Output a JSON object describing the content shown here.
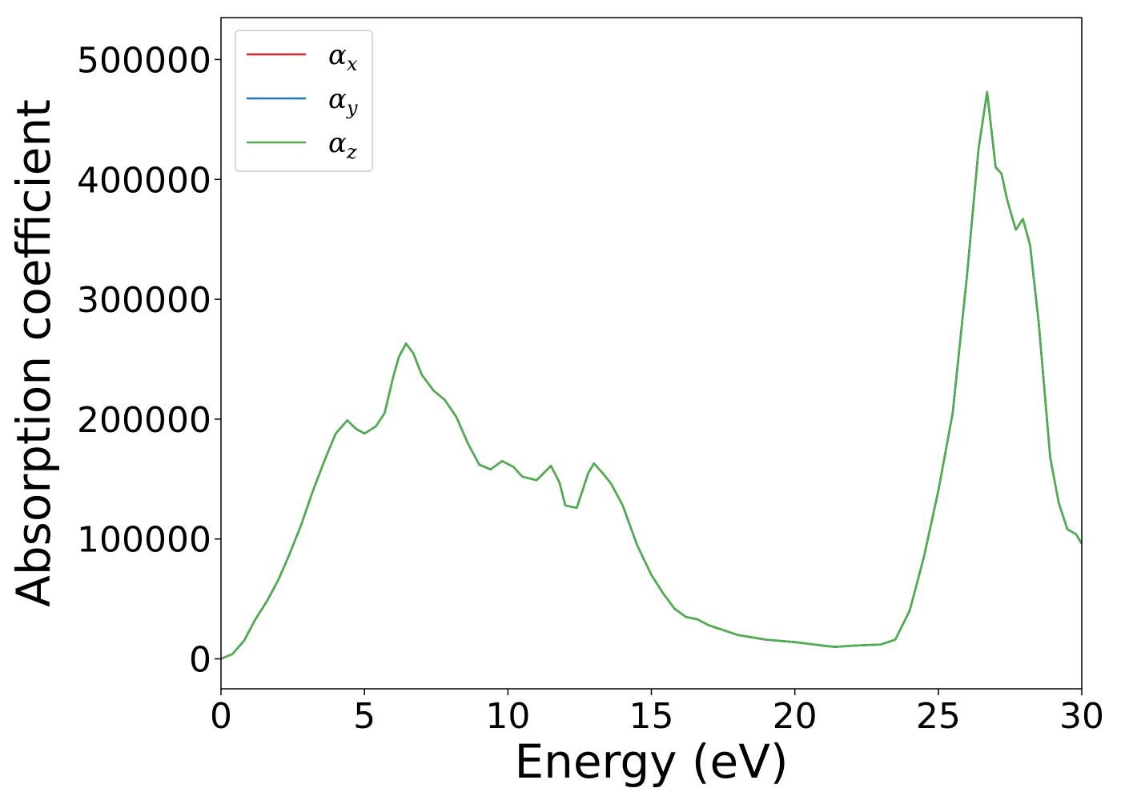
{
  "chart_data": {
    "type": "line",
    "xlabel": "Energy (eV)",
    "ylabel": "Absorption coefficient",
    "xlim": [
      0,
      30
    ],
    "ylim": [
      -25000,
      535000
    ],
    "xticks": [
      "0",
      "5",
      "10",
      "15",
      "20",
      "25",
      "30"
    ],
    "yticks": [
      "0",
      "100000",
      "200000",
      "300000",
      "400000",
      "500000"
    ],
    "grid": false,
    "legend_position": "top-left",
    "x": [
      0,
      0.4,
      0.8,
      1.2,
      1.6,
      2.0,
      2.4,
      2.8,
      3.2,
      3.6,
      4.0,
      4.4,
      4.7,
      5.0,
      5.4,
      5.7,
      6.0,
      6.2,
      6.45,
      6.7,
      7.0,
      7.4,
      7.8,
      8.2,
      8.6,
      9.0,
      9.4,
      9.8,
      10.2,
      10.5,
      11.0,
      11.5,
      11.8,
      12.0,
      12.4,
      12.8,
      13.0,
      13.3,
      13.6,
      14.0,
      14.5,
      15.0,
      15.4,
      15.8,
      16.2,
      16.6,
      17.0,
      17.5,
      18.0,
      19.0,
      20.0,
      21.0,
      21.4,
      22.0,
      23.0,
      23.5,
      24.0,
      24.5,
      25.0,
      25.5,
      26.0,
      26.4,
      26.7,
      27.0,
      27.2,
      27.4,
      27.7,
      27.95,
      28.2,
      28.5,
      28.9,
      29.2,
      29.5,
      29.8,
      30.0
    ],
    "series": [
      {
        "name": "αx",
        "color": "#d62728",
        "values": [
          0,
          4000,
          15000,
          33000,
          48000,
          66000,
          88000,
          112000,
          140000,
          165000,
          188000,
          199000,
          192000,
          188000,
          194000,
          205000,
          235000,
          252000,
          263000,
          255000,
          237000,
          224000,
          216000,
          202000,
          180000,
          162000,
          158000,
          165000,
          160000,
          152000,
          149000,
          161000,
          147000,
          128000,
          126000,
          155000,
          163000,
          155000,
          146000,
          128000,
          95000,
          70000,
          55000,
          42000,
          35000,
          33000,
          28000,
          24000,
          20000,
          16000,
          14000,
          11000,
          10000,
          11000,
          12000,
          16000,
          40000,
          85000,
          140000,
          205000,
          320000,
          425000,
          473000,
          410000,
          405000,
          383000,
          358000,
          367000,
          345000,
          280000,
          168000,
          130000,
          108000,
          104000,
          96000
        ]
      },
      {
        "name": "αy",
        "color": "#1f77b4",
        "values": [
          0,
          4000,
          15000,
          33000,
          48000,
          66000,
          88000,
          112000,
          140000,
          165000,
          188000,
          199000,
          192000,
          188000,
          194000,
          205000,
          235000,
          252000,
          263000,
          255000,
          237000,
          224000,
          216000,
          202000,
          180000,
          162000,
          158000,
          165000,
          160000,
          152000,
          149000,
          161000,
          147000,
          128000,
          126000,
          155000,
          163000,
          155000,
          146000,
          128000,
          95000,
          70000,
          55000,
          42000,
          35000,
          33000,
          28000,
          24000,
          20000,
          16000,
          14000,
          11000,
          10000,
          11000,
          12000,
          16000,
          40000,
          85000,
          140000,
          205000,
          320000,
          425000,
          473000,
          410000,
          405000,
          383000,
          358000,
          367000,
          345000,
          280000,
          168000,
          130000,
          108000,
          104000,
          96000
        ]
      },
      {
        "name": "αz",
        "color": "#4daf4a",
        "values": [
          0,
          4000,
          15000,
          33000,
          48000,
          66000,
          88000,
          112000,
          140000,
          165000,
          188000,
          199000,
          192000,
          188000,
          194000,
          205000,
          235000,
          252000,
          263000,
          255000,
          237000,
          224000,
          216000,
          202000,
          180000,
          162000,
          158000,
          165000,
          160000,
          152000,
          149000,
          161000,
          147000,
          128000,
          126000,
          155000,
          163000,
          155000,
          146000,
          128000,
          95000,
          70000,
          55000,
          42000,
          35000,
          33000,
          28000,
          24000,
          20000,
          16000,
          14000,
          11000,
          10000,
          11000,
          12000,
          16000,
          40000,
          85000,
          140000,
          205000,
          320000,
          425000,
          473000,
          410000,
          405000,
          383000,
          358000,
          367000,
          345000,
          280000,
          168000,
          130000,
          108000,
          104000,
          96000
        ]
      }
    ],
    "legend": [
      {
        "symbol": "α",
        "sub": "x",
        "color": "#d62728"
      },
      {
        "symbol": "α",
        "sub": "y",
        "color": "#1f77b4"
      },
      {
        "symbol": "α",
        "sub": "z",
        "color": "#4daf4a"
      }
    ]
  }
}
